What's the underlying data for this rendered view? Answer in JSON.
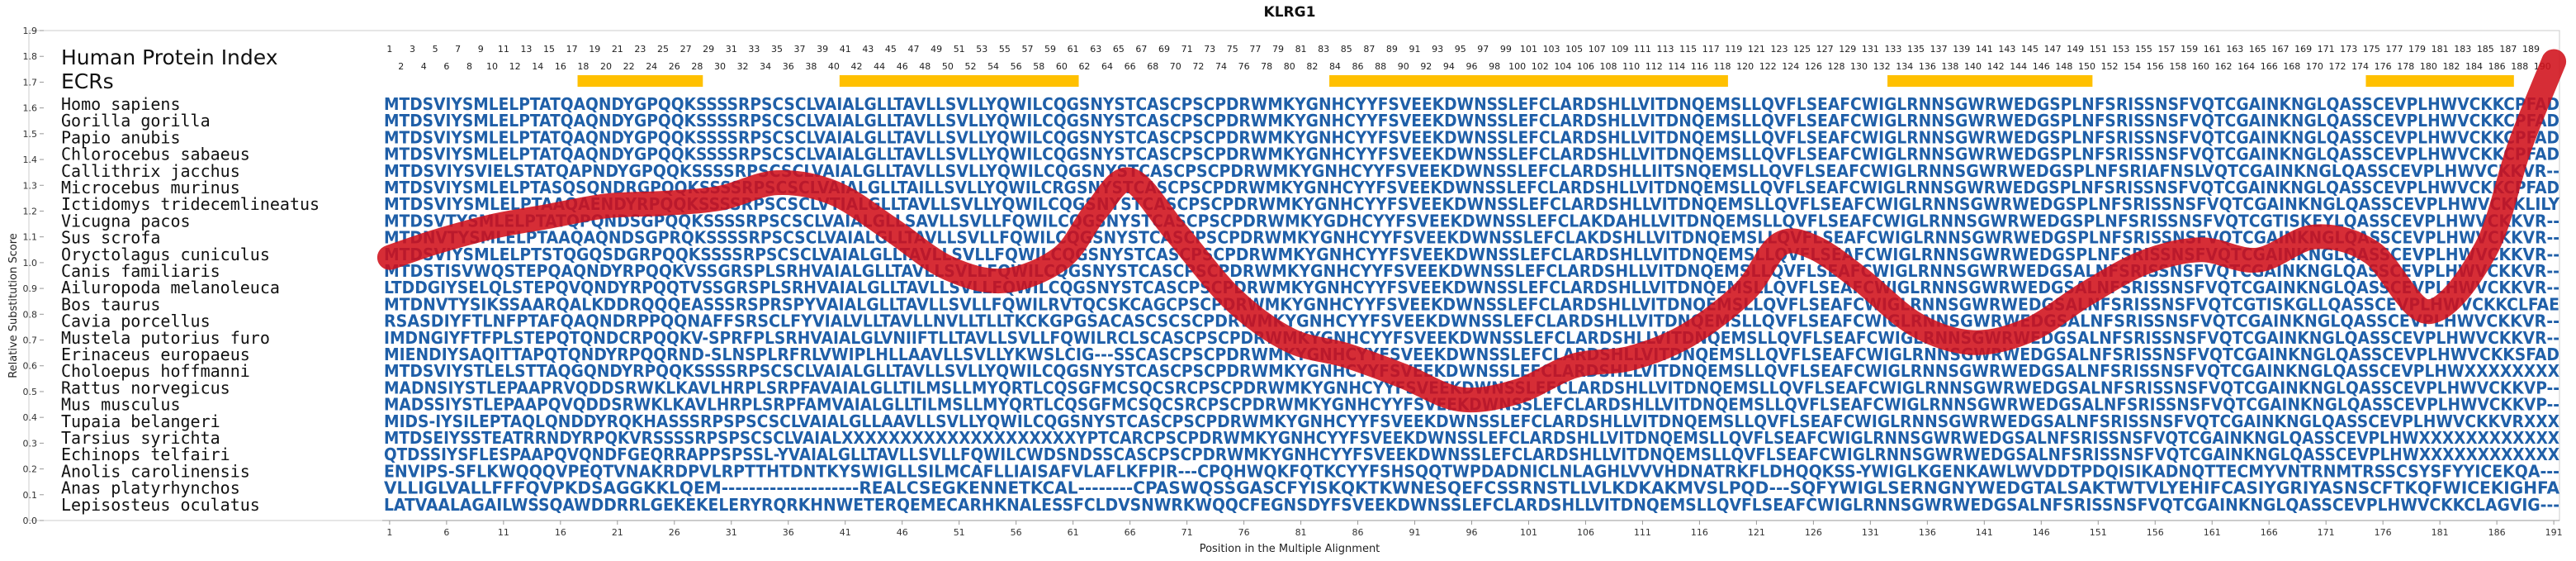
{
  "chart_data": {
    "type": "line",
    "title": "KLRG1",
    "xlabel": "Position in the Multiple Alignment",
    "ylabel": "Relative Substitution Score",
    "xlim": [
      1,
      191
    ],
    "ylim": [
      0.0,
      1.9
    ],
    "yticks": [
      "0.0",
      "0.1",
      "0.2",
      "0.3",
      "0.4",
      "0.5",
      "0.6",
      "0.7",
      "0.8",
      "0.9",
      "1.0",
      "1.1",
      "1.2",
      "1.3",
      "1.4",
      "1.5",
      "1.6",
      "1.7",
      "1.8",
      "1.9"
    ],
    "xticks": [
      1,
      6,
      11,
      16,
      21,
      26,
      31,
      36,
      41,
      46,
      51,
      56,
      61,
      66,
      71,
      76,
      81,
      86,
      91,
      96,
      101,
      106,
      111,
      116,
      121,
      126,
      131,
      136,
      141,
      146,
      151,
      156,
      161,
      166,
      171,
      176,
      181,
      186,
      191
    ],
    "header_labels": {
      "index": "Human Protein Index",
      "ecrs": "ECRs"
    },
    "column_numbers_odd": [
      1,
      3,
      5,
      7,
      9,
      11,
      13,
      15,
      17,
      19,
      21,
      23,
      25,
      27,
      29,
      31,
      33,
      35,
      37,
      39,
      41,
      43,
      45,
      47,
      49,
      51,
      53,
      55,
      57,
      59,
      61,
      63,
      65,
      67,
      69,
      71,
      73,
      75,
      77,
      79,
      81,
      83,
      85,
      87,
      89,
      91,
      93,
      95,
      97,
      99,
      101,
      103,
      105,
      107,
      109,
      111,
      113,
      115,
      117,
      119,
      121,
      123,
      125,
      127,
      129,
      131,
      133,
      135,
      137,
      139,
      141,
      143,
      145,
      147,
      149,
      151,
      153,
      155,
      157,
      159,
      161,
      163,
      165,
      167,
      169,
      171,
      173,
      175,
      177,
      179,
      181,
      183,
      185,
      187,
      189
    ],
    "column_numbers_even": [
      2,
      4,
      6,
      8,
      10,
      12,
      14,
      16,
      18,
      20,
      22,
      24,
      26,
      28,
      30,
      32,
      34,
      36,
      38,
      40,
      42,
      44,
      46,
      48,
      50,
      52,
      54,
      56,
      58,
      60,
      62,
      64,
      66,
      68,
      70,
      72,
      74,
      76,
      78,
      80,
      82,
      84,
      86,
      88,
      90,
      92,
      94,
      96,
      98,
      100,
      102,
      104,
      106,
      108,
      110,
      112,
      114,
      116,
      118,
      120,
      122,
      124,
      126,
      128,
      130,
      132,
      134,
      136,
      138,
      140,
      142,
      144,
      146,
      148,
      150,
      152,
      154,
      156,
      158,
      160,
      162,
      164,
      166,
      168,
      170,
      172,
      174,
      176,
      178,
      180,
      182,
      184,
      186,
      188,
      190
    ],
    "ecr_regions": [
      [
        18,
        28
      ],
      [
        41,
        61
      ],
      [
        84,
        118
      ],
      [
        133,
        150
      ],
      [
        175,
        187
      ]
    ],
    "ecr_color": "#FFC000",
    "line_color": "#D0101A",
    "sequence_color": "#1F5FA8",
    "species": [
      "Homo sapiens",
      "Gorilla gorilla",
      "Papio anubis",
      "Chlorocebus sabaeus",
      "Callithrix jacchus",
      "Microcebus murinus",
      "Ictidomys tridecemlineatus",
      "Vicugna pacos",
      "Sus scrofa",
      "Oryctolagus cuniculus",
      "Canis familiaris",
      "Ailuropoda melanoleuca",
      "Bos taurus",
      "Cavia porcellus",
      "Mustela putorius furo",
      "Erinaceus europaeus",
      "Choloepus hoffmanni",
      "Rattus norvegicus",
      "Mus musculus",
      "Tupaia belangeri",
      "Tarsius syrichta",
      "Echinops telfairi",
      "Anolis carolinensis",
      "Anas platyrhynchos",
      "Lepisosteus oculatus"
    ],
    "sequences": [
      "MTDSVIYSMLELPTATQAQNDYGPQQKSSSSRPSCSCLVAIALGLLTAVLLSVLLYQWILCQGSNYSTCASCPSCPDRWMKYGNHCYYFSVEEKDWNSSLEFCLARDSHLLVITDNQEMSLLQVFLSEAFCWIGLRNNSGWRWEDGSPLNFSRISSNSFVQTCGAINKNGLQASSCEVPLHWVCKKCPFAD",
      "MTDSVIYSMLELPTATQAQNDYGPQQKSSSSRPSCSCLVAIALGLLTAVLLSVLLYQWILCQGSNYSTCASCPSCPDRWMKYGNHCYYFSVEEKDWNSSLEFCLARDSHLLVITDNQEMSLLQVFLSEAFCWIGLRNNSGWRWEDGSPLNFSRISSNSFVQTCGAINKNGLQASSCEVPLHWVCKKCPFAD",
      "MTDSVIYSMLELPTATQAQNDYGPQQKSSSSRPSCSCLVAIALGLLTAVLLSVLLYQWILCQGSNYSTCASCPSCPDRWMKYGNHCYYFSVEEKDWNSSLEFCLARDSHLLVITDNQEMSLLQVFLSEAFCWIGLRNNSGWRWEDGSPLNFSRISSNSFVQTCGAINKNGLQASSCEVPLHWVCKKCPFAD",
      "MTDSVIYSMLELPTATQAQNDYGPQQKSSSSRPSCSCLVAIALGLLTAVLLSVLLYQWILCQGSNYSTCASCPSCPDRWMKYGNHCYYFSVEEKDWNSSLEFCLARDSHLLVITDNQEMSLLQVFLSEAFCWIGLRNNSGWRWEDGSPLNFSRISSNSFVQTCGAINKNGLQASSCEVPLHWVCKKCPFAD",
      "MTDSVIYSVIELSTATQAPNDYGPQQKSSSSRPSCSCLVAIALGLLTAVLLSVLLYQWILCQGSNYSTCASCPSCPDRWMKYGNHCYYFSVEEKDWNSSLEFCLARDSHLLIITSNQEMSLLQVFLSEAFCWIGLRNNSGWRWEDGSPLNFSRIAFNSLVQTCGAINKNGLQASSCEVPLHWVCKKVR--",
      "MTDSVIYSMLELPTASQSQNDRGPQQKSSSSRPSCSCLVAIALGLLTAILLSVLLYQWILCRGSNYSTCASCPSCPDRWMKYGNHCYYFSVEEKDWNSSLEFCLARDSHLLVITDNQEMSLLQVFLSEAFCWIGLRNNSGWRWEDGSPLNFSRISSNSFVQTCGAINKNGLQASSCEVPLHWVCKKCPFAD",
      "MTDSVIYSMLELPTAAQAENDYRPQQKSSSSRPSCSCLVTIALGLLTAVLLSVLLYQWILCQGSNYSTCASCPSCPDRWMKYGNHCYYFSVEEKDWNSSLEFCLARDSHLLVITDNQEMSLLQVFLSEAFCWIGLRNNSGWRWEDGSPLNFSRISSNSFVQTCGAINKNGLQASSCEVPLHWVCKKLILY",
      "MTDSVTYSMLELPTATQPQNDSGPQQKSSSSRPSCSCLVAIALGLLSAVLLSVLLFQWILCQGSNYSTCASCPSCPDRWMKYGDHCYYFSVEEKDWNSSLEFCLAKDAHLLVITDNQEMSLLQVFLSEAFCWIGLRNNSGWRWEDGSPLNFSRISSNSFVQTCGTISKEYLQASSCEVPLHWVCKKVR--",
      "MTDNVTYSMLELPTAAQAQNDSGPRQKSSSSRPSCSCLVAIALGLLTAVLLSVLLFQWILCQGSNYSTCASCPSCPDRWMKYGNHCYYFSVEEKDWNSSLEFCLAKDSHLLVITDNQEMSLLQVFLSEAFCWIGLRNNSGWRWEDGSPLNFSRISSNSFVQTCGAINKNGLQASSCEVPLHWVCKKVR--",
      "MTDSVIYSMLELPTSTQGQSDGRPQQKSSSSRPSCSCLVAIALGLLTAVLLSVLLFQWILCQGSNYSTCASCPSCPDRWMKYGNHCYYFSVEEKDWNSSLEFCLARDSHLLVITDNQEMSLLQVFLSEAFCWIGLRNNSGWRWEDGSPLNFSRISSNSFVQTCGAINKNGLQASSCEVPLHWVCKKVR--",
      "MTDSTISVWQSTEPQAQNDYRPQQKVSSGRSPLSRHVAIALGLLTAVLLSVLLFQWILCQGSNYSTCASCPSCPDRWMKYGNHCYYFSVEEKDWNSSLEFCLARDSHLLVITDNQEMSLLQVFLSEAFCWIGLRNNSGWRWEDGSALNFSRISSNSFVQTCGAINKNGLQASSCEVPLHWVCKKVR--",
      "LTDDGIYSELQLSTEPQVQNDYRPQQTVSSGRSPLSRHVAIALGLLTAVLLSVLLFQWILCQGSNYSTCASCPSCPDRWMKYGNHCYYFSVEEKDWNSSLEFCLARDSHLLVITDNQEMSLLQVFLSEAFCWIGLRNNSGWRWEDGSALNFSRISSNSFVQTCGAINKNGLQASSCEVPLHWVCKKVR--",
      "MTDNVTYSIKSSAARQALKDDRQQQEASSSRSPRSPYVAIALGLLTAVLLSVLLFQWILRVTQCSKCAGCPSCPDRWMKYGNHCYYFSVEEKDWNSSLEFCLARDSHLLVITDNQEMSLLQVFLSEAFCWIGLRNNSGWRWEDGSALNFSRISSNSFVQTCGTISKGLLQASSCEVPLHWVCKKCLFAE",
      "RSASDIYFTLNFPTAFQAQNDRPPQQNAFFSRSCLFYVIALVLLTAVLLNVLLTLLTKCKGPGSACASCSCSCPDRWMKYGNHCYYFSVEEKDWNSSLEFCLARDSHLLVITDNQEMSLLQVFLSEAFCWIGLRNNSGWRWEDGSALNFSRISSNSFVQTCGAINKNGLQASSCEVPLHWVCKKVR--",
      "IMDNGIYFTFPLSTEPQTQNDCRPQQKV-SPRFPLSRHVAIALGLVNIIFTLLTAVLLSVLLFQWILRCLSCASCPSCPDRWMKYGNHCYYFSVEEKDWNSSLEFCLARDSHLLVITDNQEMSLLQVFLSEAFCWIGLRNNSGWRWEDGSALNFSRISSNSFVQTCGAINKNGLQASSCEVPLHWVCKKVR--",
      "MIENDIYSAQITTAPQTQNDYRPQQRND-SLNSPLRFRLVWIPLHLLAAVLLSVLLYKWSLCIG---SSCASCPSCPDRWMKYGNHCYYFSVEEKDWNSSLEFCLARDSHLLVITDNQEMSLLQVFLSEAFCWIGLRNNSGWRWEDGSALNFSRISSNSFVQTCGAINKNGLQASSCEVPLHWVCKKSFAD",
      "MTDSVIYSTLELSTTAQGQNDYRPQQKSSSSRPSCSCLVAIALGLLTAVLLSVLLYQWILCQGSNYSTCASCPSCPDRWMKYGNHCYYFSVEEKDWNSSLEFCLARDSHLLVITDNQEMSLLQVFLSEAFCWIGLRNNSGWRWEDGSALNFSRISSNSFVQTCGAINKNGLQASSCEVPLHWXXXXXXXX",
      "MADNSIYSTLEPAAPRVQDDSRWKLKAVLHRPLSRPFAVAIALGLLTILMSLLMYQRTLCQSGFMCSQCSRCPSCPDRWMKYGNHCYYFSVEEKDWNSSLEFCLARDSHLLVITDNQEMSLLQVFLSEAFCWIGLRNNSGWRWEDGSALNFSRISSNSFVQTCGAINKNGLQASSCEVPLHWVCKKVP--",
      "MADSSIYSTLEPAAPQVQDDSRWKLKAVLHRPLSRPFAMVAIALGLLTILMSLLMYQRTLCQSGFMCSQCSRCPSCPDRWMKYGNHCYYFSVEEKDWNSSLEFCLARDSHLLVITDNQEMSLLQVFLSEAFCWIGLRNNSGWRWEDGSALNFSRISSNSFVQTCGAINKNGLQASSCEVPLHWVCKKVP--",
      "MIDS-IYSILEPTAQLQNDDYRQKHASSSRPSPSCSCLVAIALGLLAAVLLSVLLYQWILCQGSNYSTCASCPSCPDRWMKYGNHCYYFSVEEKDWNSSLEFCLARDSHLLVITDNQEMSLLQVFLSEAFCWIGLRNNSGWRWEDGSALNFSRISSNSFVQTCGAINKNGLQASSCEVPLHWVCKKVRXXX",
      "MTDSEIYSSTEATRRNDYRPQKVRSSSSRPSPSCSCLVAIALXXXXXXXXXXXXXXXXXXXXYPTCARCPSCPDRWMKYGNHCYYFSVEEKDWNSSLEFCLARDSHLLVITDNQEMSLLQVFLSEAFCWIGLRNNSGWRWEDGSALNFSRISSNSFVQTCGAINKNGLQASSCEVPLHWXXXXXXXXXXXX",
      "QTDSSIYSFLESPAAPQVQNDFGEQRRAPPSPSSL-YVAIALGLLTAVLLSVLLFQWILCWDSNDSSCASCPSCPDRWMKYGNHCYYFSVEEKDWNSSLEFCLARDSHLLVITDNQEMSLLQVFLSEAFCWIGLRNNSGWRWEDGSALNFSRISSNSFVQTCGAINKNGLQASSCEVPLHWXXXXXXXXXXXX",
      "ENVIPS-SFLKWQQQVPEQTVNAKRDPVLRPTTHTDNTKYSWIGLLSILMCAFLLIAISAFVLAFLKFPIR---CPQHWQKFQTKCYYFSHSQQTWPDADNICLNLAGHLVVVHDNATRKFLDHQQKSS-YWIGLKGENKAWLWVDDTPDQISIKADNQTTECMYVNTRNMTRSSCSYSFYYICEKQA---",
      "VLLIGLVALLFFFQVPKDSAGGKKLQEM--------------------REALCSEGKENNETKCAL--------CPASWQSSGASCFYISKQKTKWNESQEFCSSRNSTLLVLKDKAKMVSLPQD---SQFYWIGLSERNGNYWEDGTALSAKTWTVLYEHIFCASIYGRIYASNSCFTKQFWICEKIGHFA",
      "LATVAALAGAILWSSQAWDDRRLGEKEKELERYRQRKHNWETERQEMECARHKNALESSFCLDVSNWRKWQQCFEGNSDYFSVEEKDWNSSLEFCLARDSHLLVITDNQEMSLLQVFLSEAFCWIGLRNNSGWRWEDGSALNFSRISSNSFVQTCGAINKNGLQASSCEVPLHWVCKKCLAGVIG---"
    ],
    "series": [
      {
        "x": [
          1,
          5,
          10,
          15,
          20,
          25,
          30,
          35,
          40,
          45,
          50,
          55,
          60,
          63,
          66,
          70,
          75,
          80,
          85,
          90,
          95,
          100,
          105,
          110,
          115,
          120,
          123,
          126,
          130,
          135,
          140,
          145,
          150,
          155,
          160,
          165,
          170,
          175,
          180,
          185,
          188,
          191
        ],
        "y": [
          1.02,
          1.08,
          1.14,
          1.18,
          1.22,
          1.23,
          1.25,
          1.31,
          1.27,
          1.13,
          0.98,
          0.93,
          1.02,
          1.2,
          1.32,
          1.12,
          0.86,
          0.7,
          0.64,
          0.56,
          0.47,
          0.5,
          0.6,
          0.63,
          0.72,
          0.89,
          1.07,
          1.06,
          0.94,
          0.76,
          0.69,
          0.74,
          0.88,
          1.0,
          1.05,
          1.01,
          1.1,
          1.04,
          0.81,
          1.05,
          1.45,
          1.78
        ]
      }
    ]
  }
}
